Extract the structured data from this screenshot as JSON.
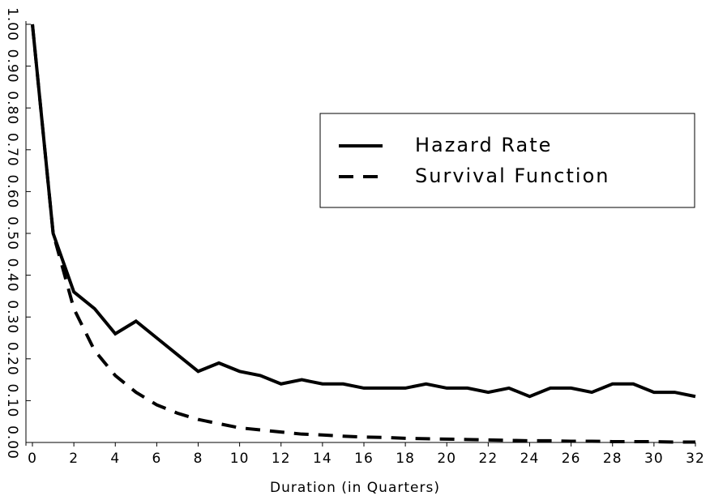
{
  "chart_data": {
    "type": "line",
    "x_label": "Duration (in Quarters)",
    "x": [
      0,
      1,
      2,
      3,
      4,
      5,
      6,
      7,
      8,
      9,
      10,
      11,
      12,
      13,
      14,
      15,
      16,
      17,
      18,
      19,
      20,
      21,
      22,
      23,
      24,
      25,
      26,
      27,
      28,
      29,
      30,
      31,
      32
    ],
    "series": [
      {
        "name": "Hazard Rate",
        "color": "#000000",
        "dash": "solid",
        "values": [
          1.0,
          0.5,
          0.36,
          0.32,
          0.26,
          0.29,
          0.25,
          0.21,
          0.17,
          0.19,
          0.17,
          0.16,
          0.14,
          0.15,
          0.14,
          0.14,
          0.13,
          0.13,
          0.13,
          0.14,
          0.13,
          0.13,
          0.12,
          0.13,
          0.11,
          0.13,
          0.13,
          0.12,
          0.14,
          0.14,
          0.12,
          0.12,
          0.11
        ]
      },
      {
        "name": "Survival Function",
        "color": "#000000",
        "dash": "dashed",
        "values": [
          1.0,
          0.5,
          0.32,
          0.22,
          0.16,
          0.12,
          0.09,
          0.07,
          0.055,
          0.045,
          0.035,
          0.03,
          0.025,
          0.02,
          0.018,
          0.015,
          0.013,
          0.012,
          0.01,
          0.009,
          0.008,
          0.007,
          0.006,
          0.005,
          0.004,
          0.004,
          0.003,
          0.003,
          0.002,
          0.002,
          0.002,
          0.001,
          0.001
        ]
      }
    ],
    "xlim": [
      0,
      32
    ],
    "ylim": [
      0,
      1
    ],
    "xticks": [
      0,
      2,
      4,
      6,
      8,
      10,
      12,
      14,
      16,
      18,
      20,
      22,
      24,
      26,
      28,
      30,
      32
    ],
    "yticks": [
      {
        "value": 0,
        "label": "0.00"
      },
      {
        "value": 0.1,
        "label": "0.10"
      },
      {
        "value": 0.2,
        "label": "0.20"
      },
      {
        "value": 0.3,
        "label": "0.30"
      },
      {
        "value": 0.4,
        "label": "0.40"
      },
      {
        "value": 0.5,
        "label": "0.50"
      },
      {
        "value": 0.6,
        "label": "0.60"
      },
      {
        "value": 0.7,
        "label": "0.70"
      },
      {
        "value": 0.8,
        "label": "0.80"
      },
      {
        "value": 0.9,
        "label": "0.90"
      },
      {
        "value": 1,
        "label": "1.00"
      }
    ],
    "legend_position": "upper right"
  }
}
